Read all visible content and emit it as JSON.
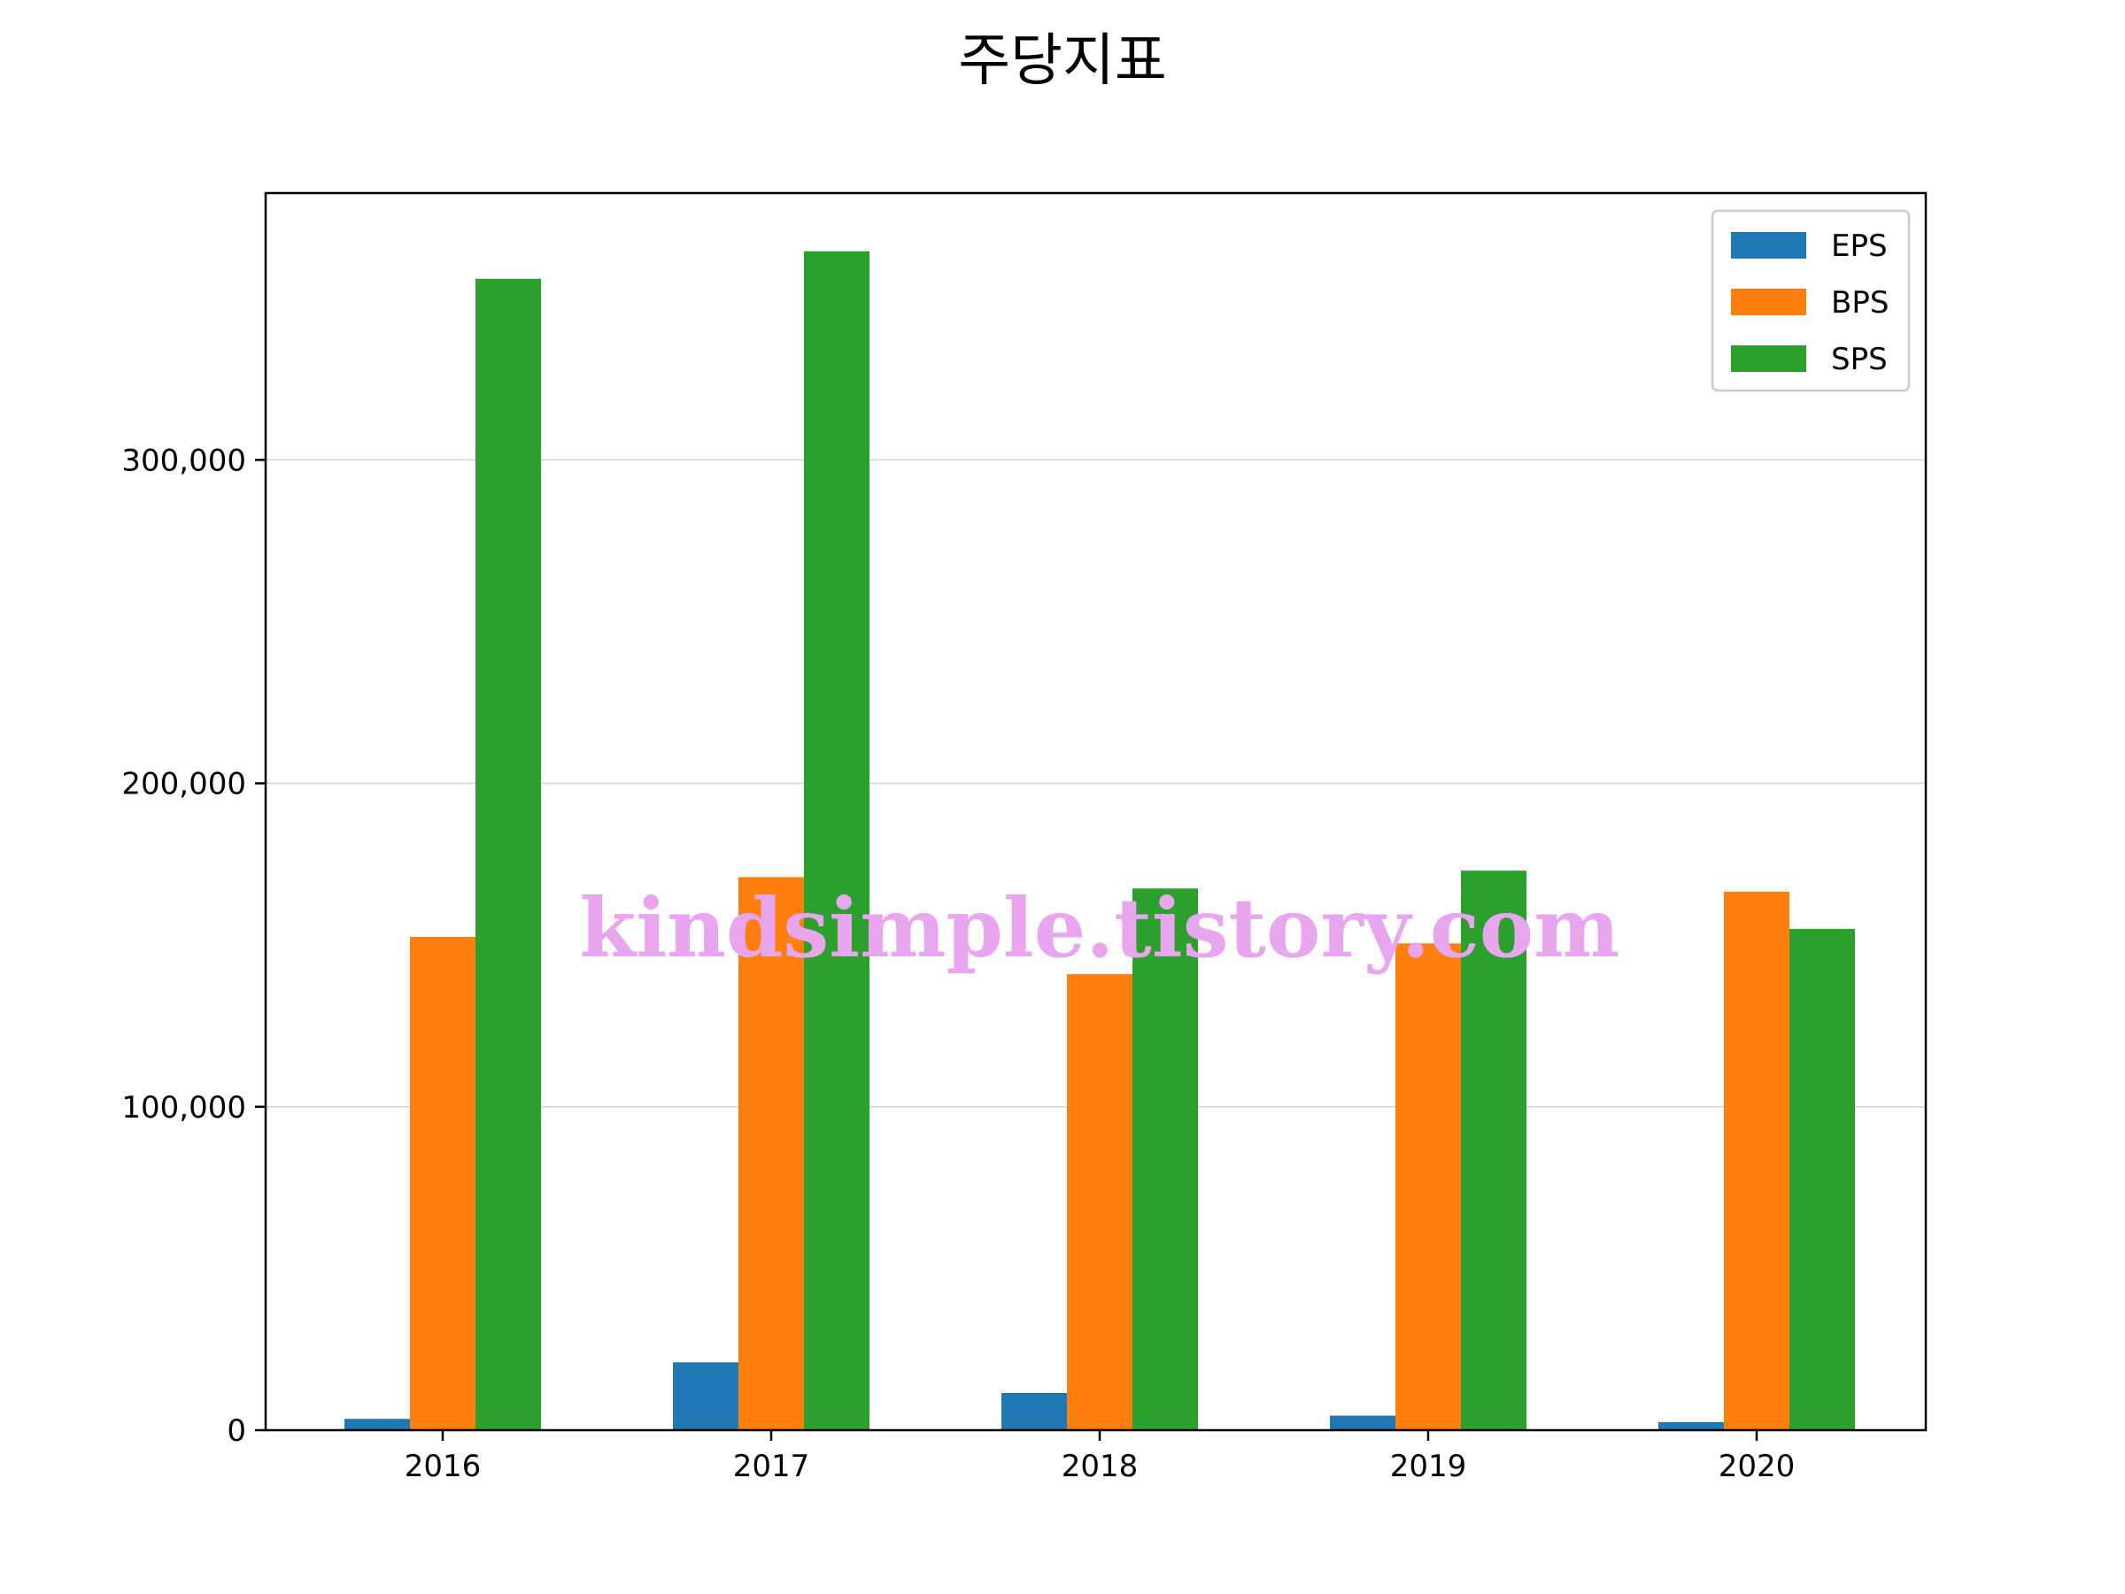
{
  "chart_data": {
    "type": "bar",
    "title": "주당지표",
    "xlabel": "",
    "ylabel": "",
    "categories": [
      "2016",
      "2017",
      "2018",
      "2019",
      "2020"
    ],
    "series": [
      {
        "name": "EPS",
        "color": "#1f77b4",
        "values": [
          3500,
          21000,
          11500,
          4500,
          2500
        ]
      },
      {
        "name": "BPS",
        "color": "#ff7f0e",
        "values": [
          152500,
          171000,
          141000,
          150500,
          166500
        ]
      },
      {
        "name": "SPS",
        "color": "#2ca02c",
        "values": [
          356000,
          364500,
          167500,
          173000,
          155000
        ]
      }
    ],
    "ylim": [
      0,
      382500
    ],
    "yticks": [
      0,
      100000,
      200000,
      300000
    ],
    "ytick_labels": [
      "0",
      "100,000",
      "200,000",
      "300,000"
    ],
    "grid": "y",
    "legend": "top-right",
    "watermark": "kindsimple.tistory.com"
  }
}
